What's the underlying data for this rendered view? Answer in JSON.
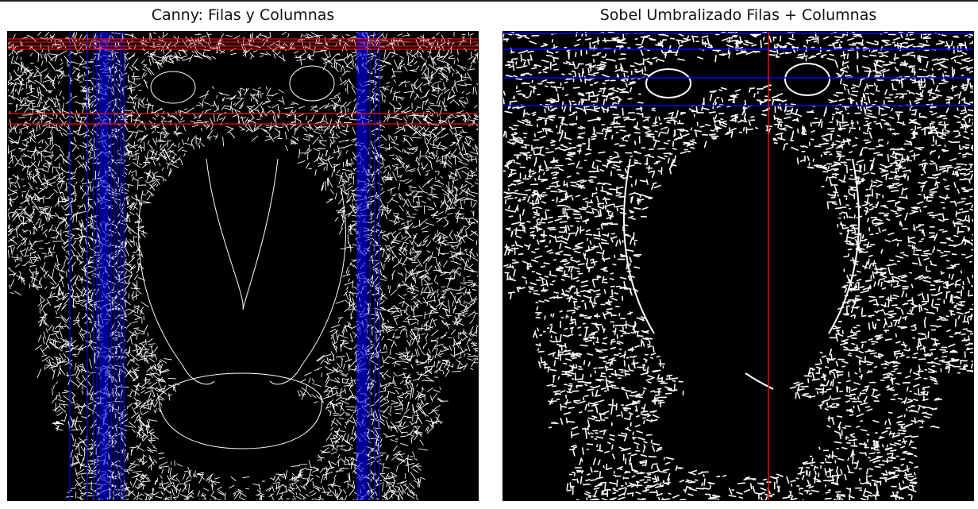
{
  "figure": {
    "left_title": "Canny: Filas y Columnas",
    "right_title": "Sobel Umbralizado Filas + Columnas"
  },
  "colors": {
    "background": "#ffffff",
    "image_background": "#000000",
    "edge": "#ffffff",
    "row_line": "#ff0000",
    "column_line": "#0000ff"
  }
}
